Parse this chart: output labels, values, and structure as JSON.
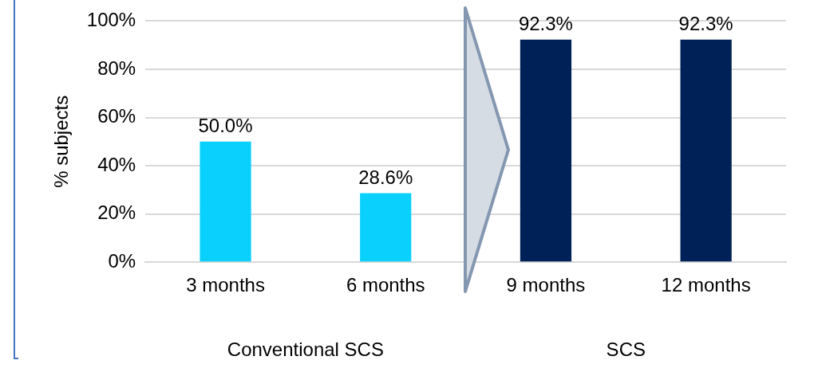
{
  "chart_data": {
    "type": "bar",
    "ylabel": "% subjects",
    "categories": [
      "3 months",
      "6 months",
      "9 months",
      "12 months"
    ],
    "values": [
      50.0,
      28.6,
      92.3,
      92.3
    ],
    "colors": [
      "#0ad0fd",
      "#0ad0fd",
      "#002157",
      "#002157"
    ],
    "value_labels": [
      "50.0%",
      "28.6%",
      "92.3%",
      "92.3%"
    ],
    "ylim": [
      0,
      100
    ],
    "yticks": [
      {
        "value": 0,
        "label": "0%"
      },
      {
        "value": 20,
        "label": "20%"
      },
      {
        "value": 40,
        "label": "40%"
      },
      {
        "value": 60,
        "label": "60%"
      },
      {
        "value": 80,
        "label": "80%"
      },
      {
        "value": 100,
        "label": "100%"
      }
    ],
    "grid": "y",
    "legend": false,
    "annotations": [
      "Conventional SCS",
      "SCS"
    ]
  }
}
